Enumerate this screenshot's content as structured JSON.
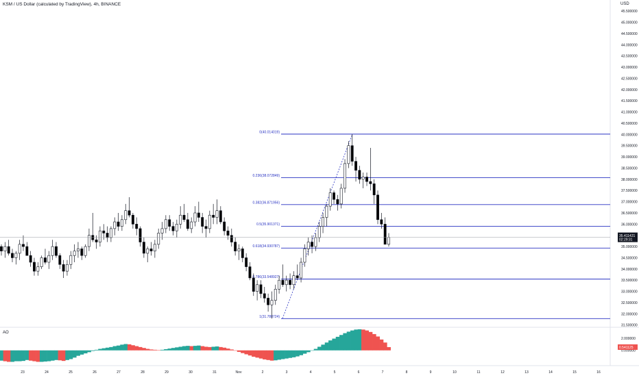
{
  "header": {
    "title": "KSM / US Dollar (calculated by TradingView), 4h, BINANCE",
    "currency": "USD"
  },
  "indicator": {
    "label": "AO"
  },
  "chart_data": [
    {
      "type": "candlestick",
      "y_axis_labels": [
        "45.500000",
        "45.000000",
        "44.500000",
        "44.000000",
        "43.500000",
        "43.000000",
        "42.500000",
        "42.000000",
        "41.500000",
        "41.000000",
        "40.500000",
        "40.000000",
        "39.500000",
        "39.000000",
        "38.500000",
        "38.000000",
        "37.500000",
        "37.000000",
        "36.500000",
        "36.000000",
        "35.500000",
        "35.000000",
        "34.500000",
        "34.000000",
        "33.500000",
        "33.000000",
        "32.500000",
        "32.000000",
        "31.500000"
      ],
      "ylim": [
        31.4,
        45.75
      ],
      "x_labels": [
        "23",
        "24",
        "25",
        "26",
        "27",
        "28",
        "29",
        "30",
        "31",
        "Nov",
        "2",
        "3",
        "4",
        "5",
        "6",
        "7",
        "8",
        "9",
        "10",
        "11",
        "12",
        "13",
        "14",
        "15",
        "16"
      ],
      "last_price": {
        "value": "35.411421",
        "countdown": "02:29:31"
      },
      "colors": {
        "up": "#ffffff",
        "down": "#000000",
        "fib": "#2832c2",
        "price_line": "#9598a1"
      },
      "fibonacci": [
        {
          "level": "0",
          "price": 40.014019,
          "label": "0(40.014019)"
        },
        {
          "level": "0.236",
          "price": 38.072849,
          "label": "0.236(38.072849)"
        },
        {
          "level": "0.382",
          "price": 36.871956,
          "label": "0.382(36.871956)"
        },
        {
          "level": "0.5",
          "price": 35.901371,
          "label": "0.5(35.901371)"
        },
        {
          "level": "0.618",
          "price": 34.930787,
          "label": "0.618(34.930787)"
        },
        {
          "level": "0.786",
          "price": 33.548927,
          "label": "0.786(33.548927)"
        },
        {
          "level": "1",
          "price": 31.788724,
          "label": "1(31.788724)"
        }
      ],
      "candles": [
        [
          35.0,
          35.1,
          34.6,
          34.8
        ],
        [
          34.8,
          35.2,
          34.5,
          35.0
        ],
        [
          35.0,
          35.3,
          34.6,
          34.7
        ],
        [
          34.7,
          34.9,
          34.3,
          34.5
        ],
        [
          34.5,
          34.8,
          34.2,
          34.7
        ],
        [
          34.7,
          35.3,
          34.4,
          35.1
        ],
        [
          35.1,
          35.5,
          34.8,
          35.0
        ],
        [
          35.0,
          35.2,
          34.6,
          34.6
        ],
        [
          34.6,
          34.8,
          34.1,
          34.3
        ],
        [
          34.3,
          34.5,
          33.7,
          33.9
        ],
        [
          33.9,
          34.3,
          33.7,
          34.1
        ],
        [
          34.1,
          34.6,
          34.0,
          34.5
        ],
        [
          34.5,
          34.9,
          34.2,
          34.3
        ],
        [
          34.3,
          34.8,
          34.0,
          34.6
        ],
        [
          34.6,
          35.3,
          34.4,
          35.0
        ],
        [
          35.0,
          35.2,
          34.5,
          34.6
        ],
        [
          34.6,
          34.7,
          34.0,
          34.2
        ],
        [
          34.2,
          34.4,
          33.6,
          33.9
        ],
        [
          33.9,
          34.4,
          33.7,
          34.2
        ],
        [
          34.2,
          34.8,
          34.0,
          34.6
        ],
        [
          34.6,
          35.1,
          34.3,
          34.8
        ],
        [
          34.8,
          35.2,
          34.5,
          34.9
        ],
        [
          34.9,
          35.0,
          34.4,
          34.6
        ],
        [
          34.6,
          35.1,
          34.5,
          35.0
        ],
        [
          35.0,
          35.8,
          34.8,
          35.5
        ],
        [
          35.5,
          36.5,
          35.2,
          35.3
        ],
        [
          35.3,
          35.5,
          34.9,
          35.2
        ],
        [
          35.2,
          35.9,
          35.0,
          35.7
        ],
        [
          35.7,
          36.0,
          35.3,
          35.6
        ],
        [
          35.6,
          35.9,
          35.2,
          35.4
        ],
        [
          35.4,
          35.9,
          35.2,
          35.8
        ],
        [
          35.8,
          36.3,
          35.5,
          36.1
        ],
        [
          36.1,
          36.5,
          35.7,
          35.9
        ],
        [
          35.9,
          36.4,
          35.7,
          36.2
        ],
        [
          36.2,
          36.9,
          36.0,
          36.6
        ],
        [
          36.6,
          37.2,
          36.3,
          36.4
        ],
        [
          36.4,
          36.5,
          35.8,
          36.0
        ],
        [
          36.0,
          36.3,
          35.5,
          35.8
        ],
        [
          35.8,
          35.9,
          35.0,
          35.2
        ],
        [
          35.2,
          35.4,
          34.5,
          34.7
        ],
        [
          34.7,
          35.0,
          34.3,
          34.9
        ],
        [
          34.9,
          35.2,
          34.6,
          34.8
        ],
        [
          34.8,
          35.3,
          34.5,
          35.1
        ],
        [
          35.1,
          35.8,
          34.9,
          35.6
        ],
        [
          35.6,
          36.1,
          35.3,
          35.8
        ],
        [
          35.8,
          36.4,
          35.6,
          36.2
        ],
        [
          36.2,
          36.4,
          35.7,
          35.9
        ],
        [
          35.9,
          36.1,
          35.5,
          35.7
        ],
        [
          35.7,
          36.2,
          35.4,
          36.0
        ],
        [
          36.0,
          36.8,
          35.8,
          36.4
        ],
        [
          36.4,
          36.9,
          36.1,
          36.2
        ],
        [
          36.2,
          36.5,
          35.7,
          35.8
        ],
        [
          35.8,
          36.3,
          35.6,
          36.1
        ],
        [
          36.1,
          36.8,
          35.9,
          36.5
        ],
        [
          36.5,
          37.0,
          36.1,
          36.3
        ],
        [
          36.3,
          36.5,
          35.6,
          35.9
        ],
        [
          35.9,
          36.2,
          35.4,
          35.8
        ],
        [
          35.8,
          36.6,
          35.6,
          36.4
        ],
        [
          36.4,
          36.9,
          36.0,
          36.3
        ],
        [
          36.3,
          37.1,
          36.0,
          36.6
        ],
        [
          36.6,
          36.8,
          36.0,
          36.1
        ],
        [
          36.1,
          36.3,
          35.5,
          35.7
        ],
        [
          35.7,
          35.9,
          35.3,
          35.5
        ],
        [
          35.5,
          35.8,
          35.0,
          35.2
        ],
        [
          35.2,
          35.4,
          34.6,
          34.8
        ],
        [
          34.8,
          35.1,
          34.4,
          34.9
        ],
        [
          34.9,
          35.0,
          34.3,
          34.5
        ],
        [
          34.5,
          34.7,
          33.9,
          34.1
        ],
        [
          34.1,
          34.3,
          33.5,
          33.6
        ],
        [
          33.6,
          33.8,
          32.8,
          33.0
        ],
        [
          33.0,
          33.5,
          32.6,
          33.3
        ],
        [
          33.3,
          33.5,
          32.7,
          32.9
        ],
        [
          32.9,
          33.2,
          32.5,
          32.7
        ],
        [
          32.7,
          32.9,
          32.1,
          32.4
        ],
        [
          32.4,
          33.0,
          31.79,
          32.6
        ],
        [
          32.6,
          33.3,
          32.4,
          33.1
        ],
        [
          33.1,
          33.7,
          32.9,
          33.5
        ],
        [
          33.5,
          34.2,
          33.2,
          33.3
        ],
        [
          33.3,
          33.7,
          33.0,
          33.5
        ],
        [
          33.5,
          33.8,
          33.1,
          33.3
        ],
        [
          33.3,
          33.9,
          33.1,
          33.7
        ],
        [
          33.7,
          34.2,
          33.5,
          33.6
        ],
        [
          33.6,
          34.5,
          33.4,
          34.3
        ],
        [
          34.3,
          35.1,
          34.1,
          34.9
        ],
        [
          34.9,
          35.4,
          34.6,
          35.2
        ],
        [
          35.2,
          35.5,
          34.7,
          35.0
        ],
        [
          35.0,
          35.6,
          34.8,
          35.4
        ],
        [
          35.4,
          36.1,
          35.2,
          35.9
        ],
        [
          35.9,
          36.5,
          35.6,
          36.3
        ],
        [
          36.3,
          36.9,
          35.9,
          36.8
        ],
        [
          36.8,
          37.6,
          36.6,
          37.4
        ],
        [
          37.4,
          37.5,
          36.9,
          37.1
        ],
        [
          37.1,
          37.3,
          36.6,
          36.9
        ],
        [
          36.9,
          37.8,
          36.7,
          37.6
        ],
        [
          37.6,
          38.9,
          37.4,
          38.7
        ],
        [
          38.7,
          39.7,
          38.5,
          39.5
        ],
        [
          39.5,
          40.01,
          38.6,
          38.8
        ],
        [
          38.8,
          39.0,
          37.9,
          38.4
        ],
        [
          38.4,
          38.6,
          37.8,
          38.0
        ],
        [
          38.0,
          38.3,
          37.6,
          38.1
        ],
        [
          38.1,
          38.3,
          37.7,
          37.9
        ],
        [
          37.9,
          39.4,
          37.5,
          37.8
        ],
        [
          37.8,
          38.0,
          36.9,
          37.3
        ],
        [
          37.3,
          37.5,
          36.0,
          36.2
        ],
        [
          36.2,
          36.5,
          35.8,
          36.0
        ],
        [
          36.0,
          36.3,
          35.1,
          35.1
        ],
        [
          35.1,
          35.6,
          35.0,
          35.41
        ]
      ]
    },
    {
      "type": "bar",
      "name": "AO",
      "y_axis_labels": [
        "2.000000",
        "0.000000"
      ],
      "last_value": "0.541125",
      "ylim": [
        -2.3,
        3.6
      ],
      "colors": {
        "up": "#26a69a",
        "down": "#ef5350"
      },
      "values": [
        -1.7,
        -1.8,
        -1.9,
        -1.9,
        -1.8,
        -1.8,
        -1.75,
        -1.6,
        -1.7,
        -1.8,
        -1.9,
        -1.9,
        -1.85,
        -1.8,
        -1.7,
        -1.6,
        -1.65,
        -1.75,
        -1.6,
        -1.45,
        -1.2,
        -0.9,
        -0.7,
        -0.5,
        -0.3,
        -0.1,
        0.1,
        0.25,
        0.35,
        0.45,
        0.55,
        0.7,
        0.8,
        0.95,
        1.05,
        1.0,
        0.85,
        0.7,
        0.55,
        0.4,
        0.25,
        0.15,
        0.1,
        0.05,
        0.1,
        0.2,
        0.3,
        0.4,
        0.5,
        0.6,
        0.7,
        0.75,
        0.7,
        0.75,
        0.8,
        0.7,
        0.6,
        0.55,
        0.6,
        0.65,
        0.55,
        0.45,
        0.3,
        0.15,
        -0.05,
        -0.25,
        -0.45,
        -0.65,
        -0.85,
        -1.05,
        -1.2,
        -1.35,
        -1.5,
        -1.6,
        -1.7,
        -1.65,
        -1.55,
        -1.45,
        -1.35,
        -1.25,
        -1.15,
        -1.0,
        -0.8,
        -0.55,
        -0.3,
        -0.05,
        0.25,
        0.6,
        0.95,
        1.3,
        1.65,
        1.95,
        2.25,
        2.55,
        2.85,
        3.1,
        3.3,
        3.45,
        3.5,
        3.45,
        3.3,
        3.05,
        2.7,
        2.3,
        1.8,
        1.3,
        0.54
      ]
    }
  ]
}
